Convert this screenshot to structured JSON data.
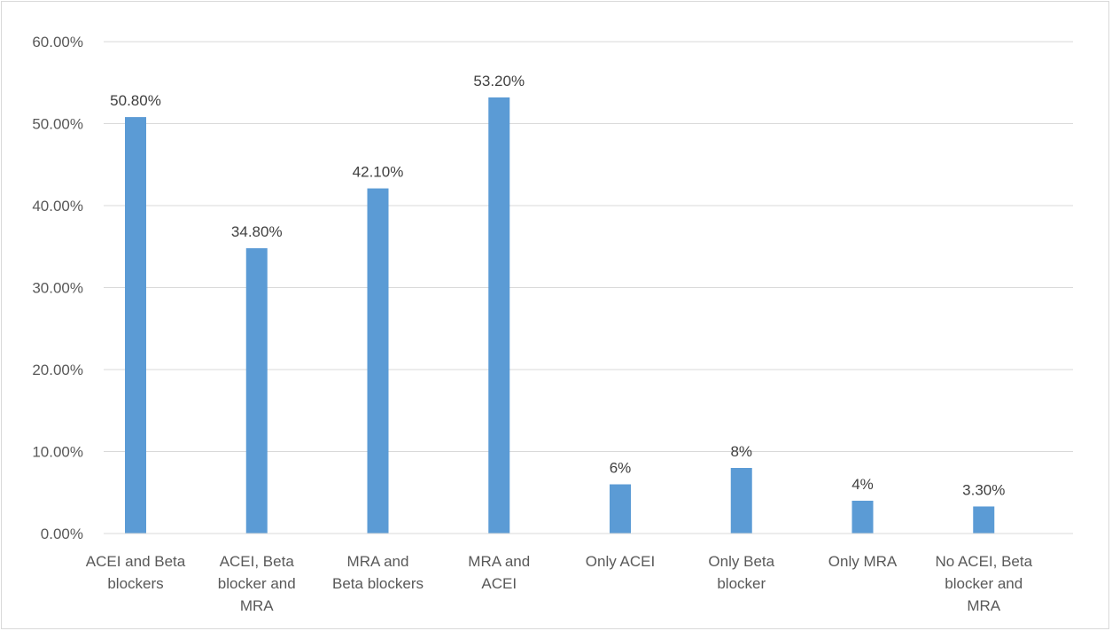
{
  "chart_data": {
    "type": "bar",
    "title": "",
    "xlabel": "",
    "ylabel": "",
    "categories": [
      [
        "ACEI and Beta",
        "blockers"
      ],
      [
        "ACEI, Beta",
        "blocker and",
        "MRA"
      ],
      [
        "MRA and",
        "Beta blockers"
      ],
      [
        "MRA and",
        "ACEI"
      ],
      [
        "Only ACEI"
      ],
      [
        "Only Beta",
        "blocker"
      ],
      [
        "Only MRA"
      ],
      [
        "No ACEI, Beta",
        "blocker and",
        "MRA"
      ]
    ],
    "values": [
      50.8,
      34.8,
      42.1,
      53.2,
      6,
      8,
      4,
      3.3
    ],
    "data_labels": [
      "50.80%",
      "34.80%",
      "42.10%",
      "53.20%",
      "6%",
      "8%",
      "4%",
      "3.30%"
    ],
    "ylim": [
      0,
      60
    ],
    "yticks": [
      0,
      10,
      20,
      30,
      40,
      50,
      60
    ],
    "ytick_labels": [
      "0.00%",
      "10.00%",
      "20.00%",
      "30.00%",
      "40.00%",
      "50.00%",
      "60.00%"
    ],
    "grid": true,
    "legend": "none",
    "colors": {
      "bar": "#5b9bd5",
      "grid": "#d9d9d9",
      "axis_text": "#595959",
      "label_text": "#404040"
    }
  }
}
